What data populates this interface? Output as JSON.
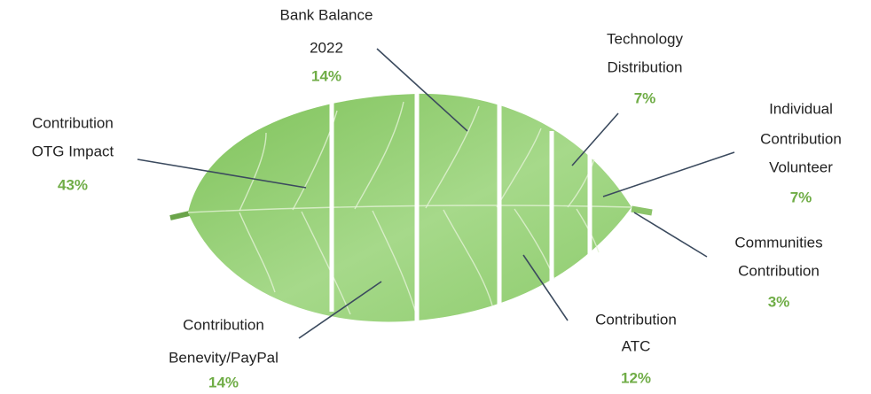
{
  "items": [
    {
      "lines": [
        "Contribution",
        "OTG Impact"
      ],
      "percent": "43%"
    },
    {
      "lines": [
        "Bank Balance",
        "2022"
      ],
      "percent": "14%"
    },
    {
      "lines": [
        "Technology",
        "Distribution"
      ],
      "percent": "7%"
    },
    {
      "lines": [
        "Individual",
        "Contribution",
        "Volunteer"
      ],
      "percent": "7%"
    },
    {
      "lines": [
        "Communities",
        "Contribution"
      ],
      "percent": "3%"
    },
    {
      "lines": [
        "Contribution",
        "ATC"
      ],
      "percent": "12%"
    },
    {
      "lines": [
        "Contribution",
        "Benevity/PayPal"
      ],
      "percent": "14%"
    }
  ]
}
